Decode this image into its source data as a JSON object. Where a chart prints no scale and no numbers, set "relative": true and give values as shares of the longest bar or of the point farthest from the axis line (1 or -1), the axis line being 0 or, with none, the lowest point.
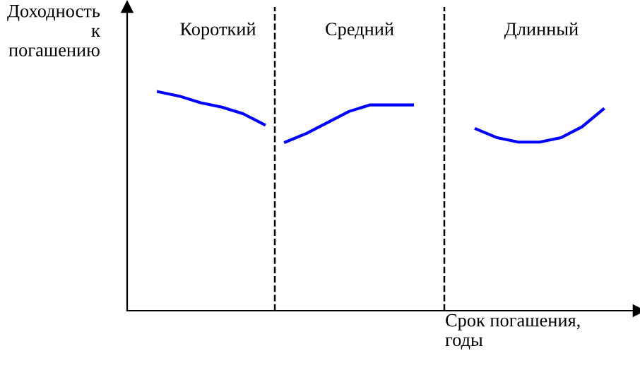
{
  "chart_data": {
    "type": "line",
    "relative": true,
    "ylabel": "Доходность\nк\nпогашению",
    "xlabel": "Срок погашения,\nгоды",
    "categories": [
      null,
      null,
      null,
      null,
      null,
      null,
      null,
      null,
      null,
      null,
      null,
      null,
      null,
      null,
      null,
      null,
      null,
      null,
      null,
      null,
      null,
      null
    ],
    "series": [
      {
        "color": "#0000ff",
        "values": [
          1.0,
          0.98,
          0.95,
          0.93,
          0.9,
          0.85,
          null,
          null,
          null,
          null,
          null,
          null,
          null,
          null,
          null,
          null,
          null,
          null,
          null,
          null,
          null,
          null
        ]
      },
      {
        "color": "#0000ff",
        "values": [
          null,
          null,
          null,
          null,
          null,
          null,
          0.77,
          0.81,
          0.86,
          0.91,
          0.94,
          0.94,
          0.94,
          null,
          null,
          null,
          null,
          null,
          null,
          null,
          null,
          null
        ]
      },
      {
        "color": "#0000ff",
        "values": [
          null,
          null,
          null,
          null,
          null,
          null,
          null,
          null,
          null,
          null,
          null,
          null,
          null,
          null,
          null,
          0.83,
          0.79,
          0.77,
          0.77,
          0.79,
          0.84,
          0.92
        ]
      }
    ],
    "annotations": [
      "Короткий",
      "Средний",
      "Длинный"
    ],
    "grid": false,
    "legend": false,
    "marker": "none",
    "line_style": "solid"
  }
}
